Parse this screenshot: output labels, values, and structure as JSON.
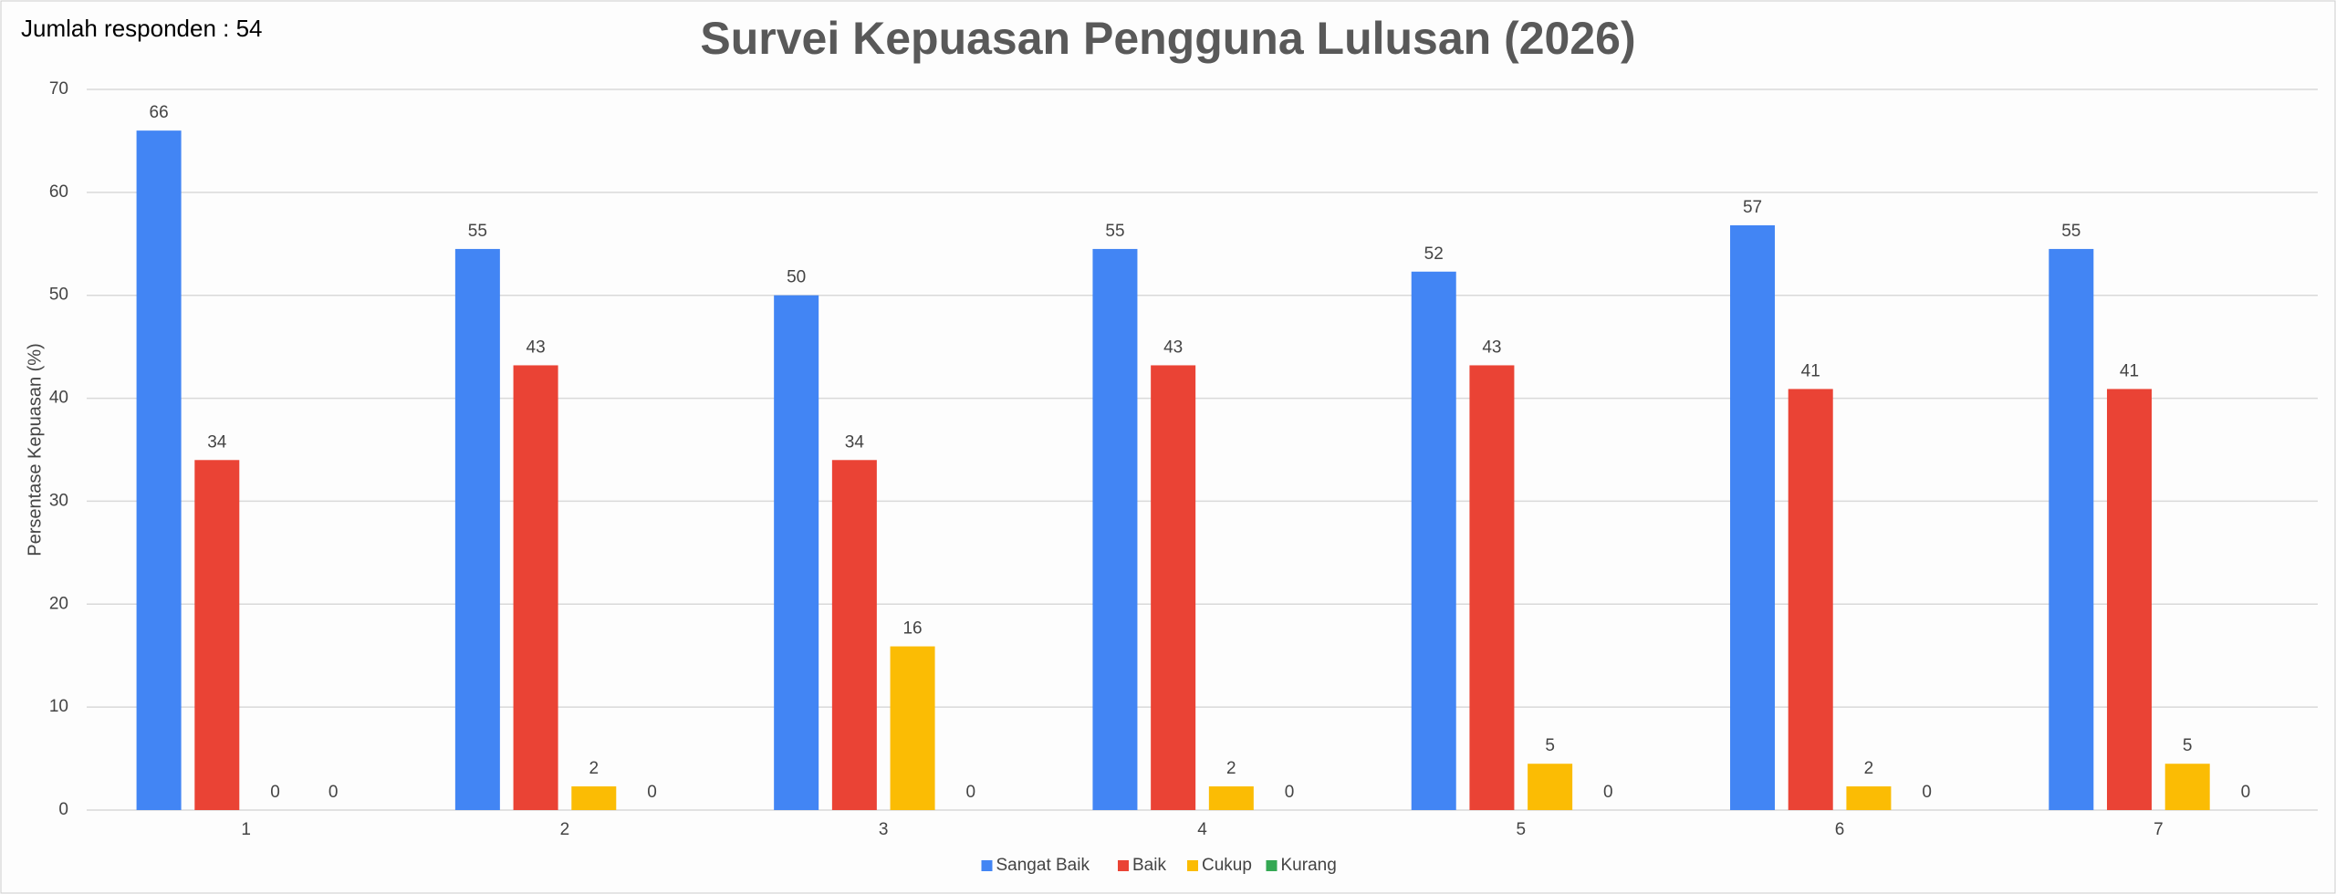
{
  "chart_data": {
    "type": "bar",
    "title": "Survei Kepuasan Pengguna Lulusan (2026)",
    "annotation": "Jumlah responden : 54",
    "y_label": "Persentase Kepuasan (%)",
    "categories": [
      "1",
      "2",
      "3",
      "4",
      "5",
      "6",
      "7"
    ],
    "series": [
      {
        "name": "Sangat Baik",
        "color": "#4285f4",
        "values": [
          66,
          54.5,
          50,
          54.5,
          52.3,
          56.8,
          54.5
        ],
        "value_labels": [
          "66",
          "55",
          "50",
          "55",
          "52",
          "57",
          "55"
        ]
      },
      {
        "name": "Baik",
        "color": "#ea4335",
        "values": [
          34,
          43.2,
          34,
          43.2,
          43.2,
          40.9,
          40.9
        ],
        "value_labels": [
          "34",
          "43",
          "34",
          "43",
          "43",
          "41",
          "41"
        ]
      },
      {
        "name": "Cukup",
        "color": "#fbbc04",
        "values": [
          0,
          2.3,
          15.9,
          2.3,
          4.5,
          2.3,
          4.5
        ],
        "value_labels": [
          "0",
          "2",
          "16",
          "2",
          "5",
          "2",
          "5"
        ]
      },
      {
        "name": "Kurang",
        "color": "#34a853",
        "values": [
          0,
          0,
          0,
          0,
          0,
          0,
          0
        ],
        "value_labels": [
          "0",
          "0",
          "0",
          "0",
          "0",
          "0",
          "0"
        ]
      }
    ],
    "ylim": [
      0,
      70
    ],
    "yticks": [
      0,
      10,
      20,
      30,
      40,
      50,
      60,
      70
    ],
    "grid": true,
    "legend": "bottom"
  }
}
